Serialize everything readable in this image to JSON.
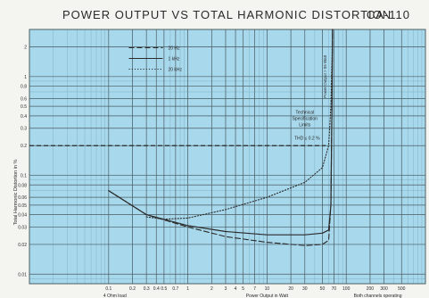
{
  "title": "POWER OUTPUT VS TOTAL HARMONIC DISTORTION",
  "model": "CA-110",
  "chart_data": {
    "type": "line",
    "title": "POWER OUTPUT VS TOTAL HARMONIC DISTORTION",
    "xlabel": "Power Output in Watt",
    "ylabel": "Total Harmonic Distortion in %",
    "x_scale": "log",
    "y_scale": "log",
    "xlim": [
      0.01,
      1000
    ],
    "ylim": [
      0.008,
      3
    ],
    "x_ticks": [
      "0.1",
      "0.2",
      "0.3",
      "0.4",
      "0.5",
      "0.7",
      "1",
      "2",
      "3",
      "4",
      "5",
      "7",
      "10",
      "20",
      "30",
      "50",
      "70",
      "100",
      "200",
      "300",
      "500"
    ],
    "x_tick_values": [
      0.1,
      0.2,
      0.3,
      0.4,
      0.5,
      0.7,
      1,
      2,
      3,
      4,
      5,
      7,
      10,
      20,
      30,
      50,
      70,
      100,
      200,
      300,
      500
    ],
    "x_tick_texts": [
      "0.1",
      "0.2",
      "0.3",
      "0.4",
      "0.5",
      "0.7",
      "1",
      "2",
      "3",
      "4",
      "5",
      "7",
      "10",
      "20",
      "30",
      "50",
      "70",
      "100",
      "200",
      "300",
      "500"
    ],
    "y_ticks": [
      "2",
      "1",
      "0.8",
      "0.6",
      "0.5",
      "0.4",
      "0.3",
      "0.2",
      "0.1",
      "0.08",
      "0.06",
      "0.05",
      "0.04",
      "0.03",
      "0.02",
      "0.01"
    ],
    "y_tick_values": [
      2,
      1,
      0.8,
      0.6,
      0.5,
      0.4,
      0.3,
      0.2,
      0.1,
      0.08,
      0.06,
      0.05,
      0.04,
      0.03,
      0.02,
      0.01
    ],
    "grid": true,
    "legend_position": "top-left",
    "series": [
      {
        "name": "20 Hz",
        "style": "dashed",
        "x": [
          0.1,
          0.3,
          1,
          3,
          10,
          30,
          50,
          60,
          64,
          66,
          67
        ],
        "y": [
          0.07,
          0.04,
          0.03,
          0.024,
          0.021,
          0.0195,
          0.02,
          0.022,
          0.05,
          0.5,
          3
        ]
      },
      {
        "name": "1 kHz",
        "style": "solid",
        "x": [
          0.1,
          0.3,
          1,
          3,
          10,
          30,
          50,
          60,
          64,
          66,
          67
        ],
        "y": [
          0.07,
          0.04,
          0.031,
          0.027,
          0.025,
          0.025,
          0.026,
          0.028,
          0.05,
          0.5,
          3
        ]
      },
      {
        "name": "20 kHz",
        "style": "dotted",
        "x": [
          0.3,
          0.5,
          1,
          3,
          10,
          30,
          50,
          60,
          64,
          66,
          67
        ],
        "y": [
          0.038,
          0.036,
          0.037,
          0.045,
          0.06,
          0.085,
          0.12,
          0.2,
          0.5,
          1.5,
          3
        ]
      }
    ],
    "annotations": [
      {
        "text": "Technical Specification Limits",
        "x": 30,
        "y": 0.42
      },
      {
        "text": "THD ≤ 0.2 %",
        "x": 32,
        "y": 0.22
      },
      {
        "text": "Power Output > 55 Watt",
        "x": 55,
        "y": 1.0,
        "rotation": -90
      }
    ],
    "limit_line": {
      "y": 0.2,
      "x_end": 55,
      "style": "dashed"
    },
    "bottom_notes": [
      "4 Ohm load",
      "Power Output in Watt",
      "Both channels operating"
    ]
  },
  "colors": {
    "plot_bg": "#a8d8ec",
    "grid_major": "#4c5e64",
    "grid_minor": "#7fb2c6",
    "curve": "#2b2b2b",
    "text": "#2a2a2a",
    "page_bg": "#f4f5f1"
  }
}
